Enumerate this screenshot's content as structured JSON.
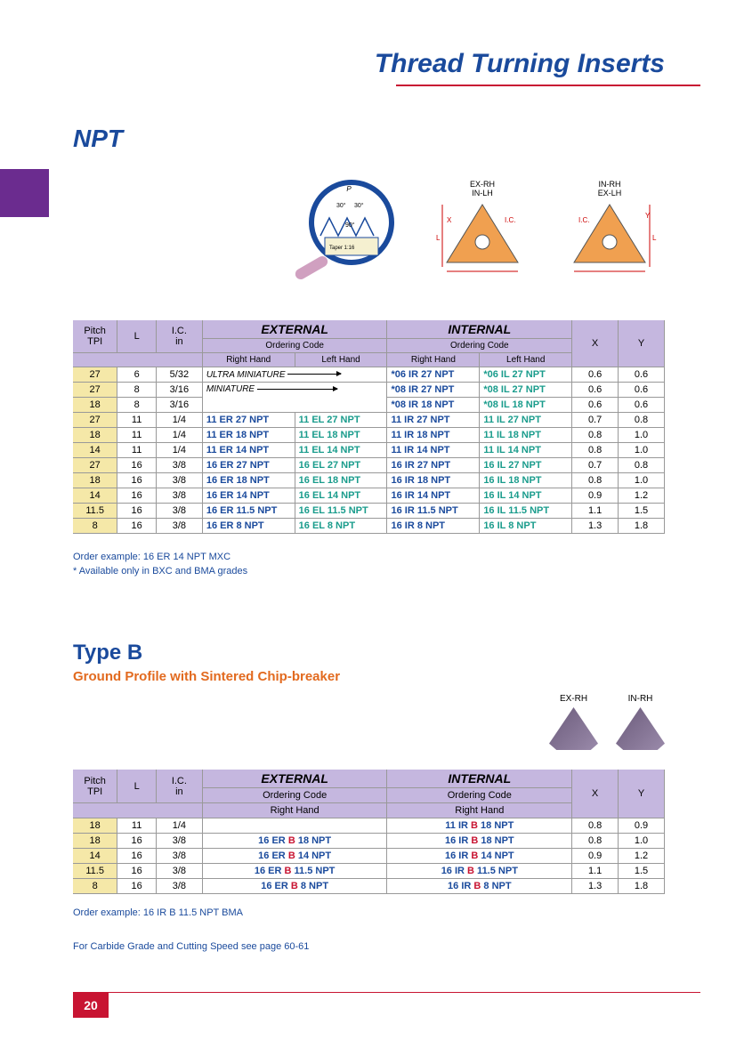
{
  "page_title": "Thread Turning Inserts",
  "section_heading": "NPT",
  "diagram_labels": {
    "angle1": "30°",
    "angle2": "30°",
    "angle3": "90°",
    "taper": "Taper 1:16",
    "p": "P",
    "exrh": "EX-RH",
    "inlh": "IN-LH",
    "inrh": "IN-RH",
    "exlh": "EX-LH",
    "ic": "I.C.",
    "x": "X",
    "y": "Y",
    "l": "L"
  },
  "table1": {
    "col_pitch1": "Pitch",
    "col_pitch2": "TPI",
    "col_l": "L",
    "col_ic1": "I.C.",
    "col_ic2": "in",
    "col_ext": "EXTERNAL",
    "col_int": "INTERNAL",
    "col_order": "Ordering Code",
    "col_rh": "Right Hand",
    "col_lh": "Left Hand",
    "col_x": "X",
    "col_y": "Y",
    "ultra_miniature": "ULTRA MINIATURE",
    "miniature": "MINIATURE",
    "rows": [
      {
        "pitch": "27",
        "l": "6",
        "ic": "5/32",
        "ext_rh": "",
        "ext_lh": "",
        "int_rh": "*06 IR 27   NPT",
        "int_lh": "*06 IL 27   NPT",
        "x": "0.6",
        "y": "0.6",
        "um": true
      },
      {
        "pitch": "27",
        "l": "8",
        "ic": "3/16",
        "ext_rh": "",
        "ext_lh": "",
        "int_rh": "*08 IR 27   NPT",
        "int_lh": "*08 IL 27   NPT",
        "x": "0.6",
        "y": "0.6",
        "min": true
      },
      {
        "pitch": "18",
        "l": "8",
        "ic": "3/16",
        "ext_rh": "",
        "ext_lh": "",
        "int_rh": "*08 IR 18   NPT",
        "int_lh": "*08 IL 18   NPT",
        "x": "0.6",
        "y": "0.6"
      },
      {
        "pitch": "27",
        "l": "11",
        "ic": "1/4",
        "ext_rh": "11 ER 27   NPT",
        "ext_lh": "11 EL 27   NPT",
        "int_rh": "11  IR 27   NPT",
        "int_lh": "11 IL 27   NPT",
        "x": "0.7",
        "y": "0.8",
        "grp": true
      },
      {
        "pitch": "18",
        "l": "11",
        "ic": "1/4",
        "ext_rh": "11 ER 18   NPT",
        "ext_lh": "11 EL 18   NPT",
        "int_rh": "11  IR 18   NPT",
        "int_lh": "11 IL 18   NPT",
        "x": "0.8",
        "y": "1.0"
      },
      {
        "pitch": "14",
        "l": "11",
        "ic": "1/4",
        "ext_rh": "11 ER 14   NPT",
        "ext_lh": "11 EL 14   NPT",
        "int_rh": "11  IR 14   NPT",
        "int_lh": "11 IL 14   NPT",
        "x": "0.8",
        "y": "1.0"
      },
      {
        "pitch": "27",
        "l": "16",
        "ic": "3/8",
        "ext_rh": "16 ER 27   NPT",
        "ext_lh": "16 EL 27   NPT",
        "int_rh": "16  IR 27   NPT",
        "int_lh": "16 IL 27   NPT",
        "x": "0.7",
        "y": "0.8",
        "grp": true
      },
      {
        "pitch": "18",
        "l": "16",
        "ic": "3/8",
        "ext_rh": "16 ER 18   NPT",
        "ext_lh": "16 EL 18   NPT",
        "int_rh": "16  IR 18   NPT",
        "int_lh": "16 IL 18   NPT",
        "x": "0.8",
        "y": "1.0"
      },
      {
        "pitch": "14",
        "l": "16",
        "ic": "3/8",
        "ext_rh": "16 ER 14   NPT",
        "ext_lh": "16 EL 14   NPT",
        "int_rh": "16  IR 14   NPT",
        "int_lh": "16 IL 14   NPT",
        "x": "0.9",
        "y": "1.2"
      },
      {
        "pitch": "11.5",
        "l": "16",
        "ic": "3/8",
        "ext_rh": "16 ER 11.5 NPT",
        "ext_lh": "16 EL 11.5 NPT",
        "int_rh": "16  IR 11.5 NPT",
        "int_lh": "16 IL 11.5 NPT",
        "x": "1.1",
        "y": "1.5"
      },
      {
        "pitch": "8",
        "l": "16",
        "ic": "3/8",
        "ext_rh": "16 ER  8   NPT",
        "ext_lh": "16 EL   8   NPT",
        "int_rh": "16  IR   8   NPT",
        "int_lh": "16 IL   8   NPT",
        "x": "1.3",
        "y": "1.8"
      }
    ]
  },
  "note1": "Order example: 16 ER 14 NPT MXC",
  "note2": "* Available only in BXC and BMA grades",
  "typeb_heading": "Type B",
  "typeb_sub": "Ground Profile with Sintered Chip-breaker",
  "typeb_diag": {
    "exrh": "EX-RH",
    "inrh": "IN-RH"
  },
  "table2": {
    "rows": [
      {
        "pitch": "18",
        "l": "11",
        "ic": "1/4",
        "ext": "",
        "int_pre": "11 IR ",
        "int_b": "B",
        "int_post": " 18    NPT",
        "x": "0.8",
        "y": "0.9"
      },
      {
        "pitch": "18",
        "l": "16",
        "ic": "3/8",
        "ext_pre": "16 ER ",
        "ext_b": "B",
        "ext_post": " 18    NPT",
        "int_pre": "16 IR ",
        "int_b": "B",
        "int_post": " 18    NPT",
        "x": "0.8",
        "y": "1.0",
        "grp": true
      },
      {
        "pitch": "14",
        "l": "16",
        "ic": "3/8",
        "ext_pre": "16 ER ",
        "ext_b": "B",
        "ext_post": " 14    NPT",
        "int_pre": "16 IR ",
        "int_b": "B",
        "int_post": " 14    NPT",
        "x": "0.9",
        "y": "1.2"
      },
      {
        "pitch": "11.5",
        "l": "16",
        "ic": "3/8",
        "ext_pre": "16 ER ",
        "ext_b": "B",
        "ext_post": " 11.5 NPT",
        "int_pre": "16 IR ",
        "int_b": "B",
        "int_post": " 11.5 NPT",
        "x": "1.1",
        "y": "1.5"
      },
      {
        "pitch": "8",
        "l": "16",
        "ic": "3/8",
        "ext_pre": "16 ER ",
        "ext_b": "B",
        "ext_post": "   8    NPT",
        "int_pre": "16 IR ",
        "int_b": "B",
        "int_post": "   8    NPT",
        "x": "1.3",
        "y": "1.8"
      }
    ]
  },
  "note3": "Order example: 16 IR B 11.5 NPT BMA",
  "note4": "For Carbide Grade and Cutting Speed see page 60-61",
  "page_number": "20",
  "colors": {
    "brand_blue": "#1a4a9c",
    "accent_red": "#c81432",
    "header_purple": "#c5b7df",
    "tab_purple": "#6b2c8f",
    "pitch_yellow": "#f5e8a8",
    "code_teal": "#1a9c8c",
    "orange": "#e26a1f"
  }
}
